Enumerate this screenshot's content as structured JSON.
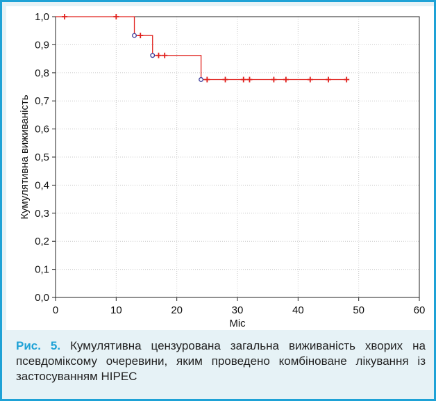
{
  "chart_data": {
    "type": "line",
    "xlabel": "Міс",
    "ylabel": "Кумулятивна виживаність",
    "xlim": [
      0,
      60
    ],
    "ylim": [
      0,
      1.0
    ],
    "x_ticks": [
      "0",
      "10",
      "20",
      "30",
      "40",
      "50",
      "60"
    ],
    "y_ticks": [
      "0,0",
      "0,1",
      "0,2",
      "0,3",
      "0,4",
      "0,5",
      "0,6",
      "0,7",
      "0,8",
      "0,9",
      "1,0"
    ],
    "grid": true,
    "series_color": "#e0201c",
    "event_marker_color": "#3a3a9a",
    "survival_curve": [
      {
        "x": 0,
        "y": 1.0
      },
      {
        "x": 13,
        "y": 1.0
      },
      {
        "x": 13,
        "y": 0.933
      },
      {
        "x": 16,
        "y": 0.933
      },
      {
        "x": 16,
        "y": 0.862
      },
      {
        "x": 24,
        "y": 0.862
      },
      {
        "x": 24,
        "y": 0.776
      },
      {
        "x": 48,
        "y": 0.776
      }
    ],
    "events": [
      {
        "x": 13,
        "y": 0.933
      },
      {
        "x": 16,
        "y": 0.862
      },
      {
        "x": 24,
        "y": 0.776
      }
    ],
    "censored": [
      {
        "x": 1.5,
        "y": 1.0
      },
      {
        "x": 10,
        "y": 1.0
      },
      {
        "x": 14,
        "y": 0.933
      },
      {
        "x": 17,
        "y": 0.862
      },
      {
        "x": 18,
        "y": 0.862
      },
      {
        "x": 25,
        "y": 0.776
      },
      {
        "x": 28,
        "y": 0.776
      },
      {
        "x": 31,
        "y": 0.776
      },
      {
        "x": 32,
        "y": 0.776
      },
      {
        "x": 36,
        "y": 0.776
      },
      {
        "x": 38,
        "y": 0.776
      },
      {
        "x": 42,
        "y": 0.776
      },
      {
        "x": 45,
        "y": 0.776
      },
      {
        "x": 48,
        "y": 0.776
      }
    ]
  },
  "caption": {
    "label": "Рис. 5.",
    "text": "Кумулятивна цензурована загальна виживаність хворих на псевдоміксому очеревини, яким проведено комбіноване лікування із застосуванням HIPEC"
  }
}
